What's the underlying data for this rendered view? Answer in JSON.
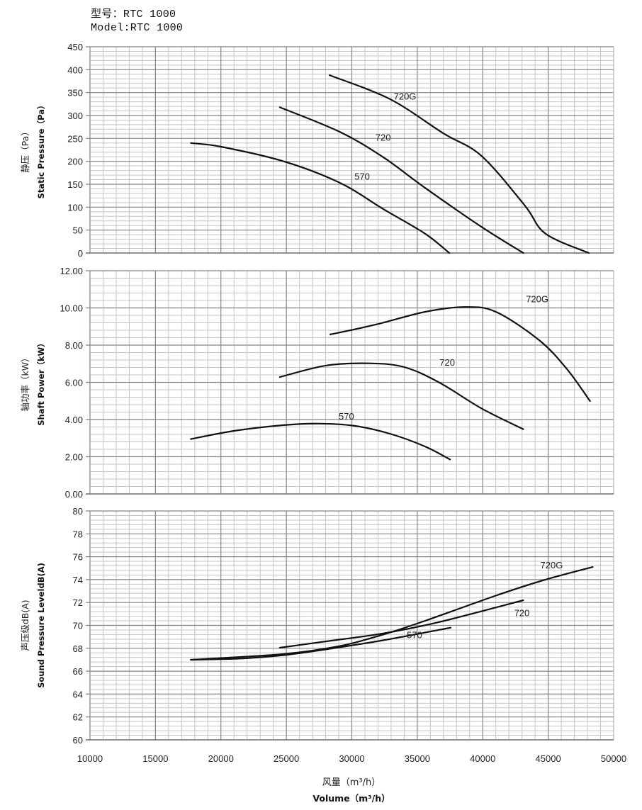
{
  "header": {
    "model_cn": "型号：RTC 1000",
    "model_en": "Model:RTC 1000"
  },
  "x_axis": {
    "label_cn": "风量（m³/h）",
    "label_en": "Volume（m³/h）",
    "min": 10000,
    "max": 50000,
    "ticks": [
      "10000",
      "15000",
      "20000",
      "25000",
      "30000",
      "35000",
      "40000",
      "45000",
      "50000"
    ]
  },
  "colors": {
    "curve": "#111111",
    "grid_major": "#8a8280",
    "grid_minor": "#c8c4c2",
    "axis": "#7a7472"
  },
  "chart_data": [
    {
      "type": "line",
      "title": "Static Pressure",
      "ylabel_cn": "静压（Pa）",
      "ylabel_en": "Static Pressure（Pa）",
      "xlabel": "Volume（m³/h）",
      "xlim": [
        10000,
        50000
      ],
      "ylim": [
        0,
        450
      ],
      "yticks": [
        "0",
        "50",
        "100",
        "150",
        "200",
        "250",
        "300",
        "350",
        "400",
        "450"
      ],
      "grid": true,
      "series": [
        {
          "name": "570",
          "x": [
            17700,
            20000,
            24800,
            29100,
            32400,
            35600,
            37450
          ],
          "y": [
            240,
            232,
            200,
            153,
            96,
            42,
            0
          ]
        },
        {
          "name": "720",
          "x": [
            24500,
            29100,
            32400,
            35600,
            39900,
            43100
          ],
          "y": [
            318,
            264,
            209,
            142,
            57,
            0
          ]
        },
        {
          "name": "720G",
          "x": [
            28300,
            32900,
            37000,
            39900,
            43200,
            44800,
            48100
          ],
          "y": [
            388,
            336,
            261,
            212,
            104,
            42,
            0
          ]
        }
      ],
      "annotations": [
        {
          "text": "570",
          "x": 30200,
          "y": 160
        },
        {
          "text": "720",
          "x": 31800,
          "y": 245
        },
        {
          "text": "720G",
          "x": 33200,
          "y": 335
        }
      ]
    },
    {
      "type": "line",
      "title": "Shaft Power",
      "ylabel_cn": "轴功率（kW）",
      "ylabel_en": "Shaft Power（kW）",
      "xlabel": "Volume（m³/h）",
      "xlim": [
        10000,
        50000
      ],
      "ylim": [
        0,
        12
      ],
      "yticks": [
        "0.00",
        "2.00",
        "4.00",
        "6.00",
        "8.00",
        "10.00",
        "12.00"
      ],
      "grid": true,
      "series": [
        {
          "name": "570",
          "x": [
            17700,
            21000,
            24800,
            27500,
            30200,
            32900,
            35600,
            37500
          ],
          "y": [
            2.95,
            3.39,
            3.7,
            3.78,
            3.66,
            3.24,
            2.55,
            1.85
          ]
        },
        {
          "name": "720",
          "x": [
            24500,
            28000,
            31300,
            34000,
            36700,
            39900,
            43100
          ],
          "y": [
            6.28,
            6.9,
            7.02,
            6.82,
            5.98,
            4.6,
            3.48
          ]
        },
        {
          "name": "720G",
          "x": [
            28350,
            31800,
            35600,
            38600,
            41000,
            44300,
            46400,
            48200
          ],
          "y": [
            8.57,
            9.1,
            9.79,
            10.05,
            9.79,
            8.27,
            6.74,
            4.99
          ]
        }
      ],
      "annotations": [
        {
          "text": "570",
          "x": 29000,
          "y": 4.0
        },
        {
          "text": "720",
          "x": 36700,
          "y": 6.9
        },
        {
          "text": "720G",
          "x": 43300,
          "y": 10.3
        }
      ]
    },
    {
      "type": "line",
      "title": "Sound Pressure Level",
      "ylabel_cn": "声压级dB(A)",
      "ylabel_en": "Sound Pressure LeveldB(A)",
      "xlabel": "Volume（m³/h）",
      "xlim": [
        10000,
        50000
      ],
      "ylim": [
        60,
        80
      ],
      "yticks": [
        "60",
        "62",
        "64",
        "66",
        "68",
        "70",
        "72",
        "74",
        "76",
        "78",
        "80"
      ],
      "grid": true,
      "series": [
        {
          "name": "570",
          "x": [
            17700,
            21500,
            24800,
            28000,
            32400,
            37550
          ],
          "y": [
            67.0,
            67.1,
            67.4,
            67.9,
            68.7,
            69.8
          ]
        },
        {
          "name": "720",
          "x": [
            24500,
            28000,
            32400,
            36700,
            43100
          ],
          "y": [
            68.05,
            68.6,
            69.3,
            70.3,
            72.2
          ]
        },
        {
          "name": "720G",
          "x": [
            17700,
            24800,
            29100,
            32400,
            35600,
            41000,
            44800,
            48400
          ],
          "y": [
            67.0,
            67.5,
            68.2,
            69.2,
            70.4,
            72.6,
            74.0,
            75.1
          ]
        }
      ],
      "annotations": [
        {
          "text": "570",
          "x": 34200,
          "y": 68.9
        },
        {
          "text": "720",
          "x": 42400,
          "y": 70.8
        },
        {
          "text": "720G",
          "x": 44400,
          "y": 75.0
        }
      ]
    }
  ]
}
